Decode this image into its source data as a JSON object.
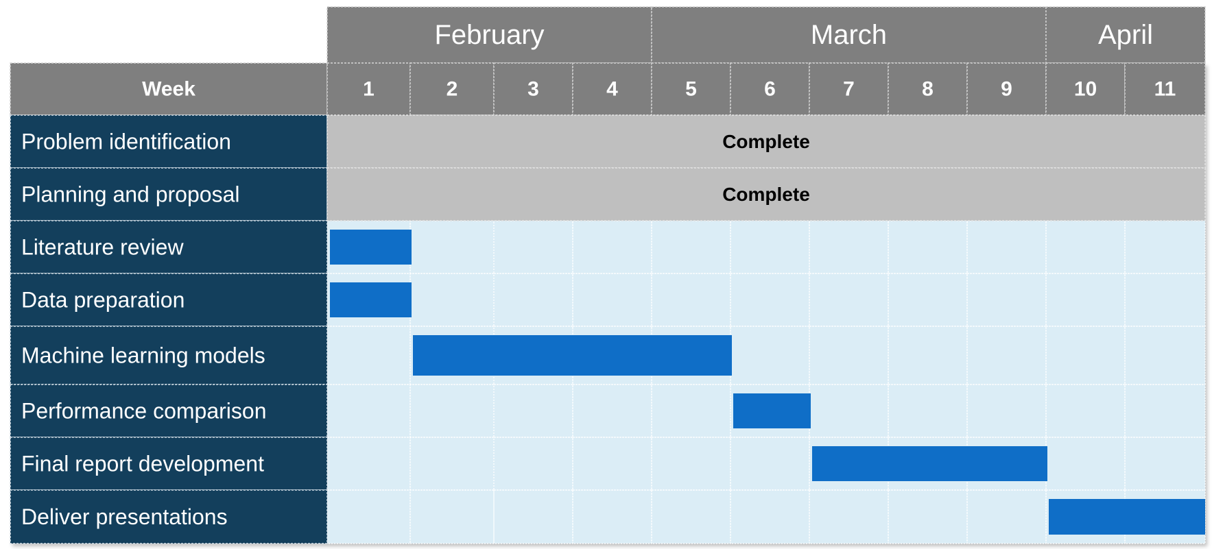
{
  "chart_data": {
    "type": "gantt",
    "week_header": "Week",
    "months": [
      {
        "name": "February",
        "start_week": 1,
        "end_week": 4
      },
      {
        "name": "March",
        "start_week": 5,
        "end_week": 9
      },
      {
        "name": "April",
        "start_week": 10,
        "end_week": 11
      }
    ],
    "weeks": [
      "1",
      "2",
      "3",
      "4",
      "5",
      "6",
      "7",
      "8",
      "9",
      "10",
      "11"
    ],
    "tasks": [
      {
        "name": "Problem identification",
        "status": "Complete"
      },
      {
        "name": "Planning and proposal",
        "status": "Complete"
      },
      {
        "name": "Literature review",
        "start_week": 1,
        "end_week": 1
      },
      {
        "name": "Data preparation",
        "start_week": 1,
        "end_week": 1
      },
      {
        "name": "Machine learning models",
        "start_week": 2,
        "end_week": 5
      },
      {
        "name": "Performance comparison",
        "start_week": 6,
        "end_week": 6
      },
      {
        "name": "Final report development",
        "start_week": 7,
        "end_week": 9
      },
      {
        "name": "Deliver presentations",
        "start_week": 10,
        "end_week": 11
      }
    ]
  },
  "colors": {
    "header_gray": "#7f7f7f",
    "task_column": "#133f5c",
    "complete_fill": "#bfbfbf",
    "grid_fill": "#dbedf6",
    "bar_blue": "#0f6ec7"
  }
}
